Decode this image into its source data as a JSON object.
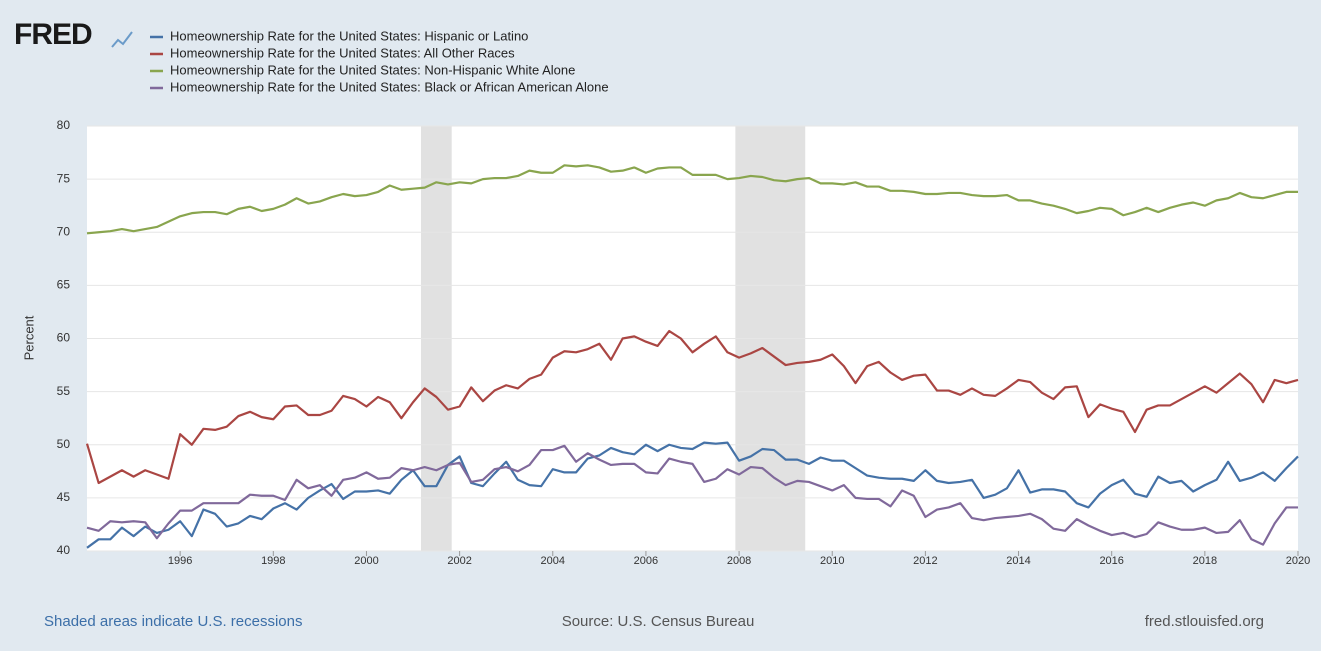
{
  "chart_data": {
    "type": "line",
    "logo": "FRED",
    "ylabel": "Percent",
    "footer_left": "Shaded areas indicate U.S. recessions",
    "footer_center": "Source: U.S. Census Bureau",
    "footer_right": "fred.stlouisfed.org",
    "xlim": [
      1994,
      2020
    ],
    "xticks": [
      1996,
      1998,
      2000,
      2002,
      2004,
      2006,
      2008,
      2010,
      2012,
      2014,
      2016,
      2018,
      2020
    ],
    "ylim": [
      40,
      80
    ],
    "yticks": [
      40,
      45,
      50,
      55,
      60,
      65,
      70,
      75,
      80
    ],
    "grid": true,
    "recessions": [
      [
        2001.17,
        2001.83
      ],
      [
        2007.92,
        2009.42
      ]
    ],
    "x": [
      1994,
      1994.25,
      1994.5,
      1994.75,
      1995,
      1995.25,
      1995.5,
      1995.75,
      1996,
      1996.25,
      1996.5,
      1996.75,
      1997,
      1997.25,
      1997.5,
      1997.75,
      1998,
      1998.25,
      1998.5,
      1998.75,
      1999,
      1999.25,
      1999.5,
      1999.75,
      2000,
      2000.25,
      2000.5,
      2000.75,
      2001,
      2001.25,
      2001.5,
      2001.75,
      2002,
      2002.25,
      2002.5,
      2002.75,
      2003,
      2003.25,
      2003.5,
      2003.75,
      2004,
      2004.25,
      2004.5,
      2004.75,
      2005,
      2005.25,
      2005.5,
      2005.75,
      2006,
      2006.25,
      2006.5,
      2006.75,
      2007,
      2007.25,
      2007.5,
      2007.75,
      2008,
      2008.25,
      2008.5,
      2008.75,
      2009,
      2009.25,
      2009.5,
      2009.75,
      2010,
      2010.25,
      2010.5,
      2010.75,
      2011,
      2011.25,
      2011.5,
      2011.75,
      2012,
      2012.25,
      2012.5,
      2012.75,
      2013,
      2013.25,
      2013.5,
      2013.75,
      2014,
      2014.25,
      2014.5,
      2014.75,
      2015,
      2015.25,
      2015.5,
      2015.75,
      2016,
      2016.25,
      2016.5,
      2016.75,
      2017,
      2017.25,
      2017.5,
      2017.75,
      2018,
      2018.25,
      2018.5,
      2018.75,
      2019,
      2019.25,
      2019.5,
      2019.75,
      2020
    ],
    "series": [
      {
        "name": "Homeownership Rate for the United States: Hispanic or Latino",
        "color": "#4572a7",
        "values": [
          40.3,
          41.1,
          41.1,
          42.2,
          41.4,
          42.3,
          41.7,
          42.0,
          42.8,
          41.4,
          43.9,
          43.5,
          42.3,
          42.6,
          43.3,
          43.0,
          44.0,
          44.5,
          43.9,
          45.0,
          45.7,
          46.3,
          44.9,
          45.6,
          45.6,
          45.7,
          45.4,
          46.7,
          47.6,
          46.1,
          46.1,
          48.1,
          48.9,
          46.4,
          46.1,
          47.3,
          48.4,
          46.7,
          46.2,
          46.1,
          47.7,
          47.4,
          47.4,
          48.7,
          49.0,
          49.7,
          49.3,
          49.1,
          50.0,
          49.4,
          50.0,
          49.7,
          49.6,
          50.2,
          50.1,
          50.2,
          48.5,
          48.9,
          49.6,
          49.5,
          48.6,
          48.6,
          48.2,
          48.8,
          48.5,
          48.5,
          47.8,
          47.1,
          46.9,
          46.8,
          46.8,
          46.6,
          47.6,
          46.6,
          46.4,
          46.5,
          46.7,
          45.0,
          45.3,
          45.9,
          47.6,
          45.5,
          45.8,
          45.8,
          45.6,
          44.5,
          44.1,
          45.4,
          46.2,
          46.7,
          45.4,
          45.1,
          47.0,
          46.4,
          46.6,
          45.6,
          46.2,
          46.7,
          48.4,
          46.6,
          46.9,
          47.4,
          46.6,
          47.8,
          48.9
        ]
      },
      {
        "name": "Homeownership Rate for the United States: All Other Races",
        "color": "#aa4643",
        "values": [
          50.1,
          46.4,
          47.0,
          47.6,
          47.0,
          47.6,
          47.2,
          46.8,
          51.0,
          50.0,
          51.5,
          51.4,
          51.7,
          52.7,
          53.1,
          52.6,
          52.4,
          53.6,
          53.7,
          52.8,
          52.8,
          53.2,
          54.6,
          54.3,
          53.6,
          54.5,
          54.0,
          52.5,
          54.0,
          55.3,
          54.5,
          53.3,
          53.6,
          55.4,
          54.1,
          55.1,
          55.6,
          55.3,
          56.2,
          56.6,
          58.2,
          58.8,
          58.7,
          59.0,
          59.5,
          58.0,
          60.0,
          60.2,
          59.7,
          59.3,
          60.7,
          60.0,
          58.7,
          59.5,
          60.2,
          58.7,
          58.2,
          58.6,
          59.1,
          58.3,
          57.5,
          57.7,
          57.8,
          58.0,
          58.5,
          57.4,
          55.8,
          57.4,
          57.8,
          56.8,
          56.1,
          56.5,
          56.6,
          55.1,
          55.1,
          54.7,
          55.3,
          54.7,
          54.6,
          55.3,
          56.1,
          55.9,
          54.9,
          54.3,
          55.4,
          55.5,
          52.6,
          53.8,
          53.4,
          53.1,
          51.2,
          53.3,
          53.7,
          53.7,
          54.3,
          54.9,
          55.5,
          54.9,
          55.8,
          56.7,
          55.7,
          54.0,
          56.1,
          55.8,
          56.1
        ]
      },
      {
        "name": "Homeownership Rate for the United States: Non-Hispanic White Alone",
        "color": "#89a54e",
        "values": [
          69.9,
          70.0,
          70.1,
          70.3,
          70.1,
          70.3,
          70.5,
          71.0,
          71.5,
          71.8,
          71.9,
          71.9,
          71.7,
          72.2,
          72.4,
          72.0,
          72.2,
          72.6,
          73.2,
          72.7,
          72.9,
          73.3,
          73.6,
          73.4,
          73.5,
          73.8,
          74.4,
          74.0,
          74.1,
          74.2,
          74.7,
          74.5,
          74.7,
          74.6,
          75.0,
          75.1,
          75.1,
          75.3,
          75.8,
          75.6,
          75.6,
          76.3,
          76.2,
          76.3,
          76.1,
          75.7,
          75.8,
          76.1,
          75.6,
          76.0,
          76.1,
          76.1,
          75.4,
          75.4,
          75.4,
          75.0,
          75.1,
          75.3,
          75.2,
          74.9,
          74.8,
          75.0,
          75.1,
          74.6,
          74.6,
          74.5,
          74.7,
          74.3,
          74.3,
          73.9,
          73.9,
          73.8,
          73.6,
          73.6,
          73.7,
          73.7,
          73.5,
          73.4,
          73.4,
          73.5,
          73.0,
          73.0,
          72.7,
          72.5,
          72.2,
          71.8,
          72.0,
          72.3,
          72.2,
          71.6,
          71.9,
          72.3,
          71.9,
          72.3,
          72.6,
          72.8,
          72.5,
          73.0,
          73.2,
          73.7,
          73.3,
          73.2,
          73.5,
          73.8,
          73.8
        ]
      },
      {
        "name": "Homeownership Rate for the United States: Black or African American Alone",
        "color": "#80699b",
        "values": [
          42.2,
          41.9,
          42.8,
          42.7,
          42.8,
          42.7,
          41.2,
          42.6,
          43.8,
          43.8,
          44.5,
          44.5,
          44.5,
          44.5,
          45.3,
          45.2,
          45.2,
          44.8,
          46.7,
          45.9,
          46.2,
          45.2,
          46.7,
          46.9,
          47.4,
          46.8,
          46.9,
          47.8,
          47.6,
          47.9,
          47.6,
          48.1,
          48.3,
          46.5,
          46.7,
          47.7,
          47.9,
          47.5,
          48.1,
          49.5,
          49.5,
          49.9,
          48.4,
          49.2,
          48.6,
          48.1,
          48.2,
          48.2,
          47.4,
          47.3,
          48.7,
          48.4,
          48.2,
          46.5,
          46.8,
          47.7,
          47.2,
          47.9,
          47.8,
          46.9,
          46.2,
          46.6,
          46.5,
          46.1,
          45.7,
          46.2,
          45.0,
          44.9,
          44.9,
          44.2,
          45.7,
          45.2,
          43.2,
          43.9,
          44.1,
          44.5,
          43.1,
          42.9,
          43.1,
          43.2,
          43.3,
          43.5,
          43.0,
          42.1,
          41.9,
          43.0,
          42.4,
          41.9,
          41.5,
          41.7,
          41.3,
          41.6,
          42.7,
          42.3,
          42.0,
          42.0,
          42.2,
          41.7,
          41.8,
          42.9,
          41.1,
          40.6,
          42.6,
          44.1,
          44.1
        ]
      }
    ]
  }
}
